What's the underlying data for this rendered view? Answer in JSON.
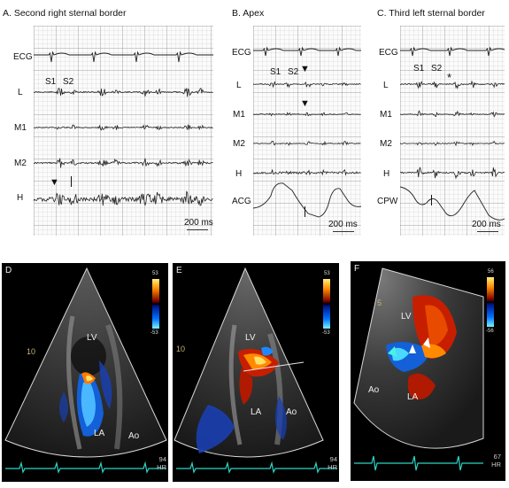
{
  "panel_a": {
    "title": "A. Second right sternal border",
    "traces": [
      "ECG",
      "L",
      "M1",
      "M2",
      "H"
    ],
    "s1": "S1",
    "s2": "S2",
    "scale": "200 ms"
  },
  "panel_b": {
    "title": "B. Apex",
    "traces": [
      "ECG",
      "L",
      "M1",
      "M2",
      "H",
      "ACG"
    ],
    "s1": "S1",
    "s2": "S2",
    "scale": "200 ms"
  },
  "panel_c": {
    "title": "C. Third left sternal border",
    "traces": [
      "ECG",
      "L",
      "M1",
      "M2",
      "H",
      "CPW"
    ],
    "s1": "S1",
    "s2": "S2",
    "scale": "200 ms"
  },
  "echo_d": {
    "letter": "D",
    "lv": "LV",
    "la": "LA",
    "ao": "Ao",
    "depth": "10",
    "scale_top": "53",
    "scale_bottom": "-53",
    "hr_value": "94",
    "hr_label": "HR"
  },
  "echo_e": {
    "letter": "E",
    "lv": "LV",
    "la": "LA",
    "ao": "Ao",
    "depth": "10",
    "scale_top": "53",
    "scale_bottom": "-53",
    "hr_value": "94",
    "hr_label": "HR"
  },
  "echo_f": {
    "letter": "F",
    "lv": "LV",
    "la": "LA",
    "ao": "Ao",
    "depth": "5",
    "scale_top": "56",
    "scale_bottom": "-56",
    "hr_value": "67",
    "hr_label": "HR"
  },
  "colors": {
    "grid_background": "#fbfbfb",
    "trace": "#222222",
    "echo_background": "#000000",
    "ecg_strip": "#2bd6c4"
  }
}
